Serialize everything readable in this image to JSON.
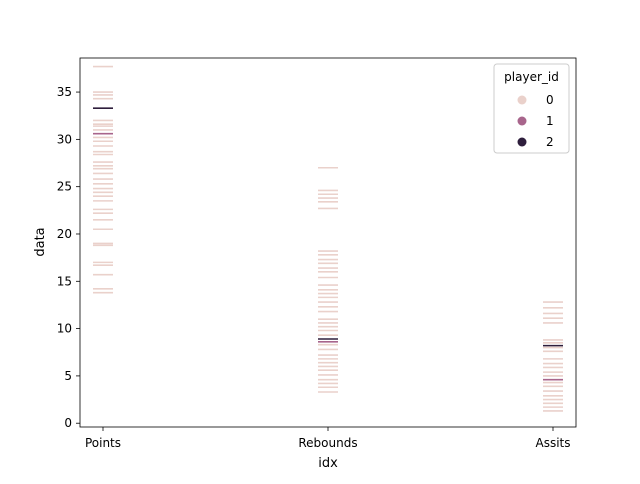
{
  "chart_data": {
    "type": "strip",
    "xlabel": "idx",
    "ylabel": "data",
    "ylim": [
      -0.4,
      38.6
    ],
    "yticks": [
      0,
      5,
      10,
      15,
      20,
      25,
      30,
      35
    ],
    "categories": [
      "Points",
      "Rebounds",
      "Assits"
    ],
    "legend": {
      "title": "player_id",
      "placement": "top-right",
      "entries": [
        {
          "label": "0",
          "color": "#ead1cb"
        },
        {
          "label": "1",
          "color": "#a8658c"
        },
        {
          "label": "2",
          "color": "#2e1e3c"
        }
      ]
    },
    "series": [
      {
        "name": "0",
        "color": "#ead1cb",
        "values": {
          "Points": [
            37.7,
            35.0,
            34.7,
            34.3,
            32.0,
            31.6,
            31.4,
            31.0,
            30.2,
            29.8,
            29.3,
            28.7,
            28.4,
            27.6,
            27.2,
            26.9,
            26.4,
            25.8,
            25.3,
            24.8,
            24.4,
            24.0,
            23.5,
            22.6,
            22.2,
            21.5,
            20.5,
            19.0,
            18.8,
            17.0,
            16.7,
            15.7,
            14.2,
            13.8
          ],
          "Rebounds": [
            27.0,
            24.6,
            24.2,
            23.8,
            23.4,
            22.7,
            18.2,
            17.8,
            17.3,
            16.9,
            16.4,
            16.0,
            15.4,
            14.6,
            14.1,
            13.7,
            13.3,
            12.8,
            12.3,
            11.8,
            11.0,
            10.6,
            10.2,
            9.8,
            9.3,
            8.3,
            7.8,
            7.2,
            6.8,
            6.4,
            6.0,
            5.6,
            5.1,
            4.6,
            4.2,
            3.8,
            3.3
          ],
          "Assits": [
            12.8,
            12.2,
            11.6,
            11.1,
            10.6,
            8.8,
            8.5,
            8.0,
            7.6,
            6.8,
            6.3,
            5.9,
            5.4,
            5.0,
            4.3,
            3.9,
            3.4,
            2.9,
            2.5,
            2.1,
            1.7,
            1.3
          ]
        }
      },
      {
        "name": "1",
        "color": "#a8658c",
        "values": {
          "Points": [
            30.6
          ],
          "Rebounds": [
            8.6
          ],
          "Assits": [
            4.6
          ]
        }
      },
      {
        "name": "2",
        "color": "#2e1e3c",
        "values": {
          "Points": [
            33.3
          ],
          "Rebounds": [
            8.9
          ],
          "Assits": [
            8.2
          ]
        }
      }
    ]
  }
}
